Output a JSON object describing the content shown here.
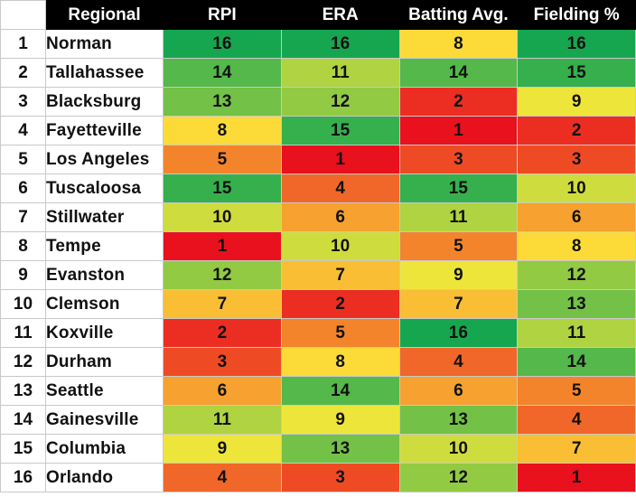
{
  "headers": [
    "Regional",
    "RPI",
    "ERA",
    "Batting Avg.",
    "Fielding %"
  ],
  "color_scale": {
    "low": "#e8111d",
    "mid": "#fde93a",
    "high": "#17a650"
  },
  "rows": [
    {
      "rank": "1",
      "name": "Norman",
      "values": [
        16,
        16,
        8,
        16
      ]
    },
    {
      "rank": "2",
      "name": "Tallahassee",
      "values": [
        14,
        11,
        14,
        15
      ]
    },
    {
      "rank": "3",
      "name": "Blacksburg",
      "values": [
        13,
        12,
        2,
        9
      ]
    },
    {
      "rank": "4",
      "name": "Fayetteville",
      "values": [
        8,
        15,
        1,
        2
      ]
    },
    {
      "rank": "5",
      "name": "Los Angeles",
      "values": [
        5,
        1,
        3,
        3
      ]
    },
    {
      "rank": "6",
      "name": "Tuscaloosa",
      "values": [
        15,
        4,
        15,
        10
      ]
    },
    {
      "rank": "7",
      "name": "Stillwater",
      "values": [
        10,
        6,
        11,
        6
      ]
    },
    {
      "rank": "8",
      "name": "Tempe",
      "values": [
        1,
        10,
        5,
        8
      ]
    },
    {
      "rank": "9",
      "name": "Evanston",
      "values": [
        12,
        7,
        9,
        12
      ]
    },
    {
      "rank": "10",
      "name": "Clemson",
      "values": [
        7,
        2,
        7,
        13
      ]
    },
    {
      "rank": "11",
      "name": "Koxville",
      "values": [
        2,
        5,
        16,
        11
      ]
    },
    {
      "rank": "12",
      "name": "Durham",
      "values": [
        3,
        8,
        4,
        14
      ]
    },
    {
      "rank": "13",
      "name": "Seattle",
      "values": [
        6,
        14,
        6,
        5
      ]
    },
    {
      "rank": "14",
      "name": "Gainesville",
      "values": [
        11,
        9,
        13,
        4
      ]
    },
    {
      "rank": "15",
      "name": "Columbia",
      "values": [
        9,
        13,
        10,
        7
      ]
    },
    {
      "rank": "16",
      "name": "Orlando",
      "values": [
        4,
        3,
        12,
        1
      ]
    }
  ]
}
